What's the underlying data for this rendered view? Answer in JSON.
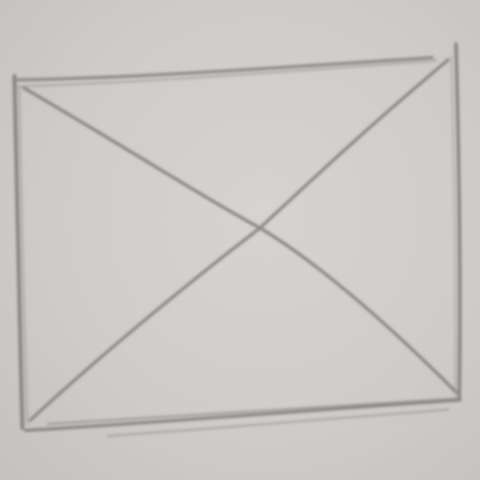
{
  "image": {
    "subject": "pencil-sketch-rectangle-with-diagonals",
    "paper_color": "#cfcdca",
    "pencil_color": "#8a8784"
  }
}
